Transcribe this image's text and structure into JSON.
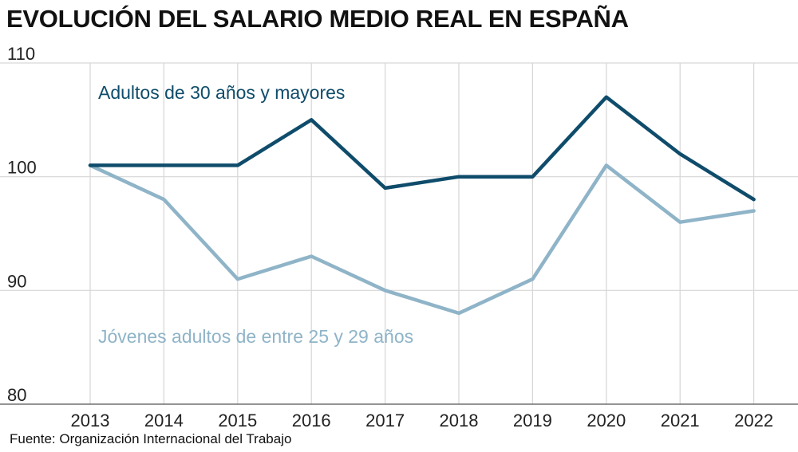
{
  "title": "EVOLUCIÓN DEL SALARIO MEDIO REAL EN ESPAÑA",
  "source": "Fuente: Organización Internacional del Trabajo",
  "colors": {
    "adultos": "#0f4c6b",
    "jovenes": "#8fb4c8",
    "grid": "#d6d6d6",
    "vgrid": "#d6d6d6",
    "axis": "#555555"
  },
  "chart_data": {
    "type": "line",
    "title": "EVOLUCIÓN DEL SALARIO MEDIO REAL EN ESPAÑA",
    "xlabel": "",
    "ylabel": "",
    "x": [
      2013,
      2014,
      2015,
      2016,
      2017,
      2018,
      2019,
      2020,
      2021,
      2022
    ],
    "ylim": [
      80,
      110
    ],
    "yticks": [
      80,
      90,
      100,
      110
    ],
    "grid": true,
    "series": [
      {
        "name": "Adultos de 30 años y mayores",
        "key": "adultos",
        "values": [
          101,
          101,
          101,
          105,
          99,
          100,
          100,
          107,
          102,
          98
        ]
      },
      {
        "name": "Jóvenes adultos de entre 25 y 29 años",
        "key": "jovenes",
        "values": [
          101,
          98,
          91,
          93,
          90,
          88,
          91,
          101,
          96,
          97
        ]
      }
    ]
  }
}
